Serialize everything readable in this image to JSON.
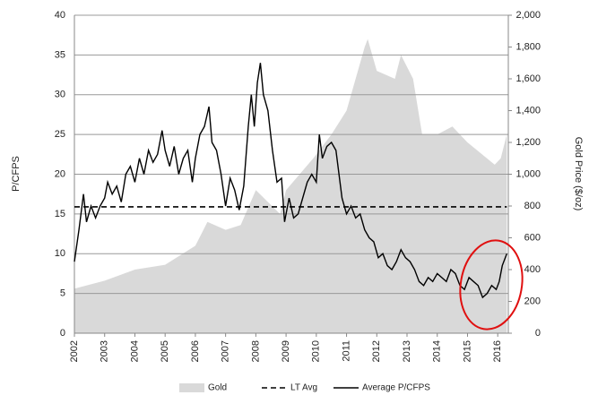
{
  "chart_data": {
    "type": "line",
    "y_label": "P/CFPS",
    "y2_label": "Gold Price ($/oz)",
    "xlim": [
      2002,
      2016.35
    ],
    "xticks": [
      2002,
      2003,
      2004,
      2005,
      2006,
      2007,
      2008,
      2009,
      2010,
      2011,
      2012,
      2013,
      2014,
      2015,
      2016
    ],
    "ylim": [
      0,
      40
    ],
    "yticks": [
      0,
      5,
      10,
      15,
      20,
      25,
      30,
      35,
      40
    ],
    "y2lim": [
      0,
      2000
    ],
    "y2ticks": [
      0,
      200,
      400,
      600,
      800,
      {
        "value": 1000,
        "label": "1,000"
      },
      {
        "value": 1200,
        "label": "1,200"
      },
      {
        "value": 1400,
        "label": "1,400"
      },
      {
        "value": 1600,
        "label": "1,600"
      },
      {
        "value": 1800,
        "label": "1,800"
      },
      {
        "value": 2000,
        "label": "2,000"
      }
    ],
    "grid": true,
    "legend": "bottom",
    "series": [
      {
        "name": "Gold",
        "kind": "area",
        "axis": "y2",
        "color": "#d9d9d9",
        "x": [
          2002,
          2003,
          2004,
          2005,
          2006,
          2006.4,
          2007,
          2007.5,
          2008,
          2008.8,
          2009,
          2009.9,
          2010.5,
          2011,
          2011.6,
          2011.7,
          2012,
          2012.6,
          2012.8,
          2013.2,
          2013.5,
          2014,
          2014.5,
          2015,
          2015.9,
          2016.1,
          2016.3
        ],
        "values": [
          280,
          330,
          400,
          430,
          550,
          700,
          650,
          680,
          900,
          750,
          900,
          1100,
          1250,
          1400,
          1800,
          1850,
          1650,
          1600,
          1750,
          1600,
          1250,
          1250,
          1300,
          1200,
          1060,
          1100,
          1250
        ]
      },
      {
        "name": "LT Avg",
        "kind": "dashed",
        "color": "#000000",
        "x": [
          2002,
          2016.3
        ],
        "values": [
          15.9,
          15.9
        ]
      },
      {
        "name": "Average P/CFPS",
        "kind": "line",
        "color": "#000000",
        "x": [
          2002.0,
          2002.15,
          2002.3,
          2002.4,
          2002.55,
          2002.7,
          2002.85,
          2003.0,
          2003.1,
          2003.25,
          2003.4,
          2003.55,
          2003.7,
          2003.85,
          2004.0,
          2004.15,
          2004.3,
          2004.45,
          2004.6,
          2004.75,
          2004.9,
          2005.0,
          2005.15,
          2005.3,
          2005.45,
          2005.6,
          2005.75,
          2005.9,
          2006.0,
          2006.15,
          2006.3,
          2006.45,
          2006.55,
          2006.7,
          2006.85,
          2007.0,
          2007.15,
          2007.3,
          2007.45,
          2007.6,
          2007.75,
          2007.85,
          2007.95,
          2008.05,
          2008.15,
          2008.25,
          2008.4,
          2008.55,
          2008.7,
          2008.85,
          2008.95,
          2009.1,
          2009.25,
          2009.4,
          2009.55,
          2009.7,
          2009.85,
          2010.0,
          2010.1,
          2010.2,
          2010.35,
          2010.5,
          2010.65,
          2010.75,
          2010.85,
          2011.0,
          2011.15,
          2011.3,
          2011.45,
          2011.6,
          2011.75,
          2011.9,
          2012.05,
          2012.2,
          2012.35,
          2012.5,
          2012.65,
          2012.8,
          2012.95,
          2013.1,
          2013.25,
          2013.4,
          2013.55,
          2013.7,
          2013.85,
          2014.0,
          2014.15,
          2014.3,
          2014.45,
          2014.6,
          2014.75,
          2014.9,
          2015.05,
          2015.2,
          2015.35,
          2015.5,
          2015.65,
          2015.8,
          2015.95,
          2016.05,
          2016.15,
          2016.3
        ],
        "values": [
          9,
          13,
          17.5,
          14,
          16,
          14.5,
          16,
          17,
          19,
          17.5,
          18.5,
          16.5,
          20,
          21,
          19,
          22,
          20,
          23,
          21.5,
          22.5,
          25.5,
          23,
          21,
          23.5,
          20,
          22,
          23,
          19,
          22,
          25,
          26,
          28.5,
          24,
          23,
          20,
          16,
          19.5,
          18,
          15.5,
          18.5,
          26,
          30,
          26,
          31.5,
          34,
          30,
          28,
          23,
          19,
          19.5,
          14,
          17,
          14.5,
          15,
          17,
          19,
          20,
          19,
          25,
          22,
          23.5,
          24,
          23,
          20,
          17,
          15,
          16,
          14.5,
          15,
          13,
          12,
          11.5,
          9.5,
          10,
          8.5,
          8,
          9,
          10.5,
          9.5,
          9,
          8,
          6.5,
          6,
          7,
          6.5,
          7.5,
          7,
          6.5,
          8,
          7.5,
          6,
          5.5,
          7,
          6.5,
          6,
          4.5,
          5,
          6,
          5.5,
          6.5,
          8.5,
          10
        ]
      }
    ]
  }
}
